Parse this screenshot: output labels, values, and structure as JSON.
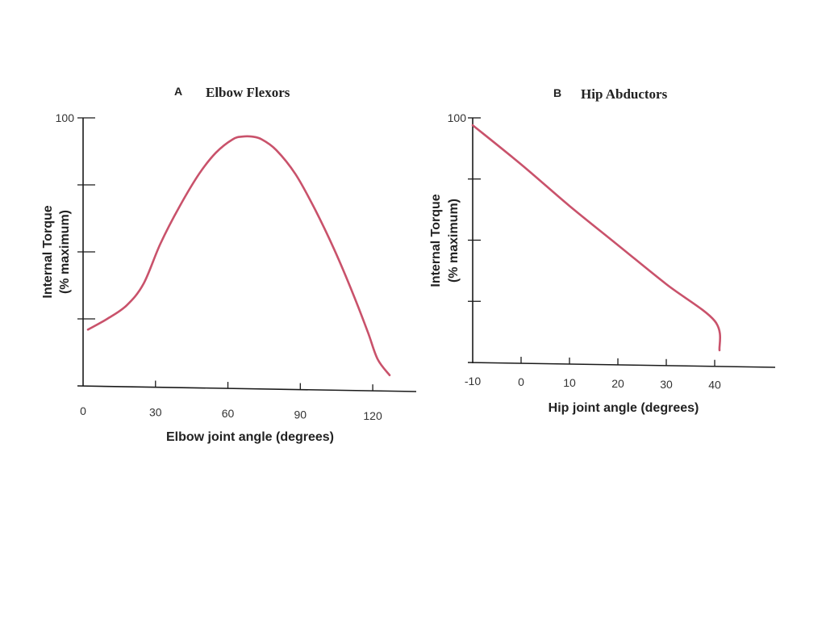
{
  "chart_data": [
    {
      "type": "line",
      "panel_label": "A",
      "title": "Elbow Flexors",
      "xlabel": "Elbow joint angle (degrees)",
      "ylabel": "Internal Torque",
      "ylabel_sub": "(% maximum)",
      "xlim": [
        0,
        130
      ],
      "ylim": [
        0,
        100
      ],
      "x_ticks": [
        0,
        30,
        60,
        90,
        120
      ],
      "x_tick_labels": [
        "0",
        "30",
        "60",
        "90",
        "120"
      ],
      "y_ticks": [
        0,
        25,
        50,
        75,
        100
      ],
      "y_tick_labels": [
        "",
        "",
        "",
        "",
        "100"
      ],
      "grid": false,
      "line_color": "#c9526b",
      "x": [
        2,
        10,
        18,
        25,
        32,
        40,
        48,
        55,
        62,
        66,
        70,
        74,
        80,
        88,
        96,
        104,
        112,
        118,
        122,
        127
      ],
      "y": [
        21,
        25,
        30,
        38,
        53,
        67,
        79,
        87,
        92,
        93,
        93,
        92,
        88,
        79,
        66,
        51,
        34,
        20,
        10,
        4
      ]
    },
    {
      "type": "line",
      "panel_label": "B",
      "title": "Hip Abductors",
      "xlabel": "Hip joint angle (degrees)",
      "ylabel": "Internal Torque",
      "ylabel_sub": "(% maximum)",
      "xlim": [
        -10,
        45
      ],
      "ylim": [
        0,
        100
      ],
      "x_ticks": [
        -10,
        0,
        10,
        20,
        30,
        40
      ],
      "x_tick_labels": [
        "-10",
        "0",
        "10",
        "20",
        "30",
        "40"
      ],
      "y_ticks": [
        0,
        25,
        50,
        75,
        100
      ],
      "y_tick_labels": [
        "",
        "",
        "",
        "",
        "100"
      ],
      "grid": false,
      "line_color": "#c9526b",
      "x": [
        -10,
        0,
        10,
        20,
        30,
        40,
        41
      ],
      "y": [
        97,
        81,
        64,
        48,
        32,
        17,
        5
      ]
    }
  ]
}
